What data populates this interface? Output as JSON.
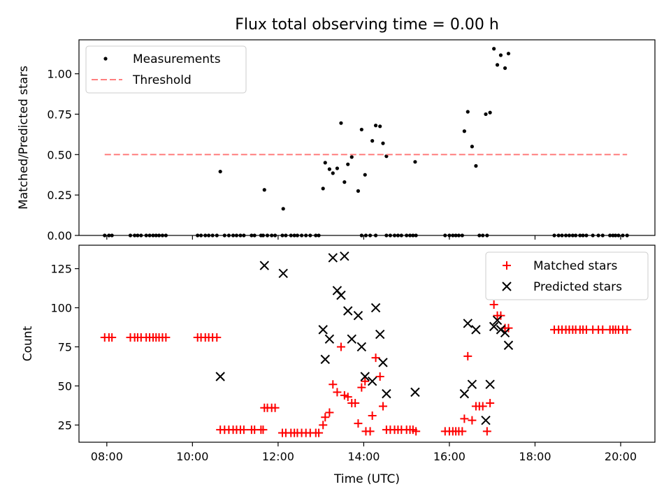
{
  "chart_data": [
    {
      "type": "scatter",
      "title": "Flux total observing time = 0.00 h",
      "xlabel": "",
      "ylabel": "Matched/Predicted stars",
      "x_unit": "hours UTC",
      "xlim": [
        7.35,
        20.8
      ],
      "ylim": [
        0.0,
        1.21
      ],
      "yticks": [
        0.0,
        0.25,
        0.5,
        0.75,
        1.0
      ],
      "ytick_labels": [
        "0.00",
        "0.25",
        "0.50",
        "0.75",
        "1.00"
      ],
      "xticks": [
        8,
        10,
        12,
        14,
        16,
        18,
        20
      ],
      "show_xtick_labels": false,
      "grid": false,
      "legend": "top-left",
      "series": [
        {
          "name": "Measurements",
          "marker": "dot",
          "color": "#000000",
          "points": [
            [
              7.95,
              0
            ],
            [
              8.05,
              0
            ],
            [
              8.12,
              0
            ],
            [
              8.55,
              0
            ],
            [
              8.65,
              0
            ],
            [
              8.72,
              0
            ],
            [
              8.8,
              0
            ],
            [
              8.92,
              0
            ],
            [
              9.0,
              0
            ],
            [
              9.08,
              0
            ],
            [
              9.15,
              0
            ],
            [
              9.22,
              0
            ],
            [
              9.3,
              0
            ],
            [
              9.38,
              0
            ],
            [
              10.12,
              0
            ],
            [
              10.2,
              0
            ],
            [
              10.3,
              0
            ],
            [
              10.38,
              0
            ],
            [
              10.47,
              0
            ],
            [
              10.57,
              0
            ],
            [
              10.75,
              0
            ],
            [
              10.85,
              0
            ],
            [
              10.95,
              0
            ],
            [
              11.03,
              0
            ],
            [
              11.12,
              0
            ],
            [
              11.2,
              0
            ],
            [
              11.38,
              0
            ],
            [
              11.45,
              0
            ],
            [
              11.6,
              0
            ],
            [
              11.65,
              0
            ],
            [
              11.75,
              0
            ],
            [
              11.85,
              0
            ],
            [
              11.93,
              0
            ],
            [
              12.1,
              0
            ],
            [
              12.18,
              0
            ],
            [
              12.3,
              0
            ],
            [
              12.38,
              0
            ],
            [
              12.45,
              0
            ],
            [
              12.55,
              0
            ],
            [
              12.65,
              0
            ],
            [
              12.75,
              0
            ],
            [
              12.88,
              0
            ],
            [
              12.95,
              0
            ],
            [
              13.95,
              0
            ],
            [
              14.05,
              0
            ],
            [
              14.15,
              0
            ],
            [
              14.28,
              0
            ],
            [
              14.53,
              0
            ],
            [
              14.62,
              0
            ],
            [
              14.72,
              0
            ],
            [
              14.8,
              0
            ],
            [
              14.88,
              0
            ],
            [
              15.0,
              0
            ],
            [
              15.08,
              0
            ],
            [
              15.15,
              0
            ],
            [
              15.22,
              0
            ],
            [
              15.9,
              0
            ],
            [
              16.0,
              0
            ],
            [
              16.08,
              0
            ],
            [
              16.15,
              0
            ],
            [
              16.22,
              0
            ],
            [
              16.3,
              0
            ],
            [
              16.7,
              0
            ],
            [
              16.78,
              0
            ],
            [
              16.88,
              0
            ],
            [
              18.45,
              0
            ],
            [
              18.55,
              0
            ],
            [
              18.63,
              0
            ],
            [
              18.72,
              0
            ],
            [
              18.8,
              0
            ],
            [
              18.88,
              0
            ],
            [
              18.95,
              0
            ],
            [
              19.05,
              0
            ],
            [
              19.12,
              0
            ],
            [
              19.2,
              0
            ],
            [
              19.35,
              0
            ],
            [
              19.48,
              0
            ],
            [
              19.58,
              0
            ],
            [
              19.75,
              0
            ],
            [
              19.82,
              0
            ],
            [
              19.88,
              0
            ],
            [
              19.95,
              0
            ],
            [
              20.05,
              0
            ],
            [
              20.15,
              0
            ],
            [
              10.65,
              0.395
            ],
            [
              11.68,
              0.282
            ],
            [
              12.12,
              0.165
            ],
            [
              13.05,
              0.29
            ],
            [
              13.1,
              0.45
            ],
            [
              13.2,
              0.41
            ],
            [
              13.28,
              0.385
            ],
            [
              13.38,
              0.415
            ],
            [
              13.47,
              0.695
            ],
            [
              13.55,
              0.33
            ],
            [
              13.63,
              0.44
            ],
            [
              13.72,
              0.485
            ],
            [
              13.87,
              0.275
            ],
            [
              13.95,
              0.655
            ],
            [
              14.03,
              0.375
            ],
            [
              14.2,
              0.585
            ],
            [
              14.28,
              0.68
            ],
            [
              14.38,
              0.675
            ],
            [
              14.45,
              0.57
            ],
            [
              14.53,
              0.49
            ],
            [
              15.2,
              0.455
            ],
            [
              16.35,
              0.645
            ],
            [
              16.43,
              0.765
            ],
            [
              16.53,
              0.55
            ],
            [
              16.62,
              0.43
            ],
            [
              16.85,
              0.75
            ],
            [
              16.95,
              0.76
            ],
            [
              17.04,
              1.155
            ],
            [
              17.12,
              1.055
            ],
            [
              17.2,
              1.115
            ],
            [
              17.3,
              1.035
            ],
            [
              17.38,
              1.125
            ]
          ]
        },
        {
          "name": "Threshold",
          "style": "dashed",
          "color": "#ff7f7f",
          "points": [
            [
              7.95,
              0.5
            ],
            [
              20.15,
              0.5
            ]
          ]
        }
      ]
    },
    {
      "type": "scatter",
      "title": "",
      "xlabel": "Time (UTC)",
      "ylabel": "Count",
      "x_unit": "hours UTC",
      "xlim": [
        7.35,
        20.8
      ],
      "ylim": [
        14,
        140
      ],
      "yticks": [
        25,
        50,
        75,
        100,
        125
      ],
      "ytick_labels": [
        "25",
        "50",
        "75",
        "100",
        "125"
      ],
      "xticks": [
        8,
        10,
        12,
        14,
        16,
        18,
        20
      ],
      "xtick_labels": [
        "08:00",
        "10:00",
        "12:00",
        "14:00",
        "16:00",
        "18:00",
        "20:00"
      ],
      "grid": false,
      "legend": "top-right",
      "series": [
        {
          "name": "Matched stars",
          "marker": "plus",
          "color": "#ff0000",
          "points": [
            [
              7.95,
              81
            ],
            [
              8.05,
              81
            ],
            [
              8.12,
              81
            ],
            [
              8.55,
              81
            ],
            [
              8.65,
              81
            ],
            [
              8.72,
              81
            ],
            [
              8.8,
              81
            ],
            [
              8.92,
              81
            ],
            [
              9.0,
              81
            ],
            [
              9.08,
              81
            ],
            [
              9.15,
              81
            ],
            [
              9.22,
              81
            ],
            [
              9.3,
              81
            ],
            [
              9.38,
              81
            ],
            [
              10.12,
              81
            ],
            [
              10.2,
              81
            ],
            [
              10.3,
              81
            ],
            [
              10.38,
              81
            ],
            [
              10.47,
              81
            ],
            [
              10.57,
              81
            ],
            [
              10.65,
              22
            ],
            [
              10.75,
              22
            ],
            [
              10.85,
              22
            ],
            [
              10.95,
              22
            ],
            [
              11.03,
              22
            ],
            [
              11.12,
              22
            ],
            [
              11.2,
              22
            ],
            [
              11.38,
              22
            ],
            [
              11.45,
              22
            ],
            [
              11.6,
              22
            ],
            [
              11.65,
              22
            ],
            [
              11.68,
              36
            ],
            [
              11.75,
              36
            ],
            [
              11.85,
              36
            ],
            [
              11.93,
              36
            ],
            [
              12.1,
              20
            ],
            [
              12.18,
              20
            ],
            [
              12.3,
              20
            ],
            [
              12.38,
              20
            ],
            [
              12.45,
              20
            ],
            [
              12.55,
              20
            ],
            [
              12.65,
              20
            ],
            [
              12.75,
              20
            ],
            [
              12.88,
              20
            ],
            [
              12.95,
              20
            ],
            [
              13.05,
              25
            ],
            [
              13.1,
              30
            ],
            [
              13.2,
              33
            ],
            [
              13.28,
              51
            ],
            [
              13.38,
              46
            ],
            [
              13.47,
              75
            ],
            [
              13.55,
              44
            ],
            [
              13.63,
              43
            ],
            [
              13.72,
              39
            ],
            [
              13.8,
              39
            ],
            [
              13.87,
              26
            ],
            [
              13.95,
              49
            ],
            [
              14.03,
              53
            ],
            [
              14.05,
              21
            ],
            [
              14.15,
              21
            ],
            [
              14.2,
              31
            ],
            [
              14.28,
              68
            ],
            [
              14.38,
              56
            ],
            [
              14.45,
              37
            ],
            [
              14.53,
              22
            ],
            [
              14.62,
              22
            ],
            [
              14.72,
              22
            ],
            [
              14.8,
              22
            ],
            [
              14.88,
              22
            ],
            [
              15.0,
              22
            ],
            [
              15.08,
              22
            ],
            [
              15.15,
              22
            ],
            [
              15.22,
              21
            ],
            [
              15.9,
              21
            ],
            [
              16.0,
              21
            ],
            [
              16.08,
              21
            ],
            [
              16.15,
              21
            ],
            [
              16.22,
              21
            ],
            [
              16.3,
              21
            ],
            [
              16.35,
              29
            ],
            [
              16.43,
              69
            ],
            [
              16.53,
              28
            ],
            [
              16.62,
              37
            ],
            [
              16.7,
              37
            ],
            [
              16.78,
              37
            ],
            [
              16.88,
              21
            ],
            [
              16.95,
              39
            ],
            [
              17.04,
              102
            ],
            [
              17.12,
              95
            ],
            [
              17.2,
              95
            ],
            [
              17.3,
              87
            ],
            [
              17.38,
              87
            ],
            [
              18.45,
              86
            ],
            [
              18.55,
              86
            ],
            [
              18.63,
              86
            ],
            [
              18.72,
              86
            ],
            [
              18.8,
              86
            ],
            [
              18.88,
              86
            ],
            [
              18.95,
              86
            ],
            [
              19.05,
              86
            ],
            [
              19.12,
              86
            ],
            [
              19.2,
              86
            ],
            [
              19.35,
              86
            ],
            [
              19.48,
              86
            ],
            [
              19.58,
              86
            ],
            [
              19.75,
              86
            ],
            [
              19.82,
              86
            ],
            [
              19.88,
              86
            ],
            [
              19.95,
              86
            ],
            [
              20.05,
              86
            ],
            [
              20.15,
              86
            ]
          ]
        },
        {
          "name": "Predicted stars",
          "marker": "x",
          "color": "#000000",
          "points": [
            [
              10.65,
              56
            ],
            [
              11.68,
              127
            ],
            [
              12.12,
              122
            ],
            [
              13.05,
              86
            ],
            [
              13.1,
              67
            ],
            [
              13.2,
              80
            ],
            [
              13.28,
              132
            ],
            [
              13.38,
              111
            ],
            [
              13.47,
              108
            ],
            [
              13.55,
              133
            ],
            [
              13.63,
              98
            ],
            [
              13.72,
              80
            ],
            [
              13.87,
              95
            ],
            [
              13.95,
              75
            ],
            [
              14.03,
              56
            ],
            [
              14.2,
              53
            ],
            [
              14.28,
              100
            ],
            [
              14.38,
              83
            ],
            [
              14.45,
              65
            ],
            [
              14.53,
              45
            ],
            [
              15.2,
              46
            ],
            [
              16.35,
              45
            ],
            [
              16.43,
              90
            ],
            [
              16.53,
              51
            ],
            [
              16.62,
              86
            ],
            [
              16.85,
              28
            ],
            [
              16.95,
              51
            ],
            [
              17.04,
              88
            ],
            [
              17.12,
              92
            ],
            [
              17.2,
              86
            ],
            [
              17.3,
              84
            ],
            [
              17.38,
              76
            ]
          ]
        }
      ]
    }
  ]
}
